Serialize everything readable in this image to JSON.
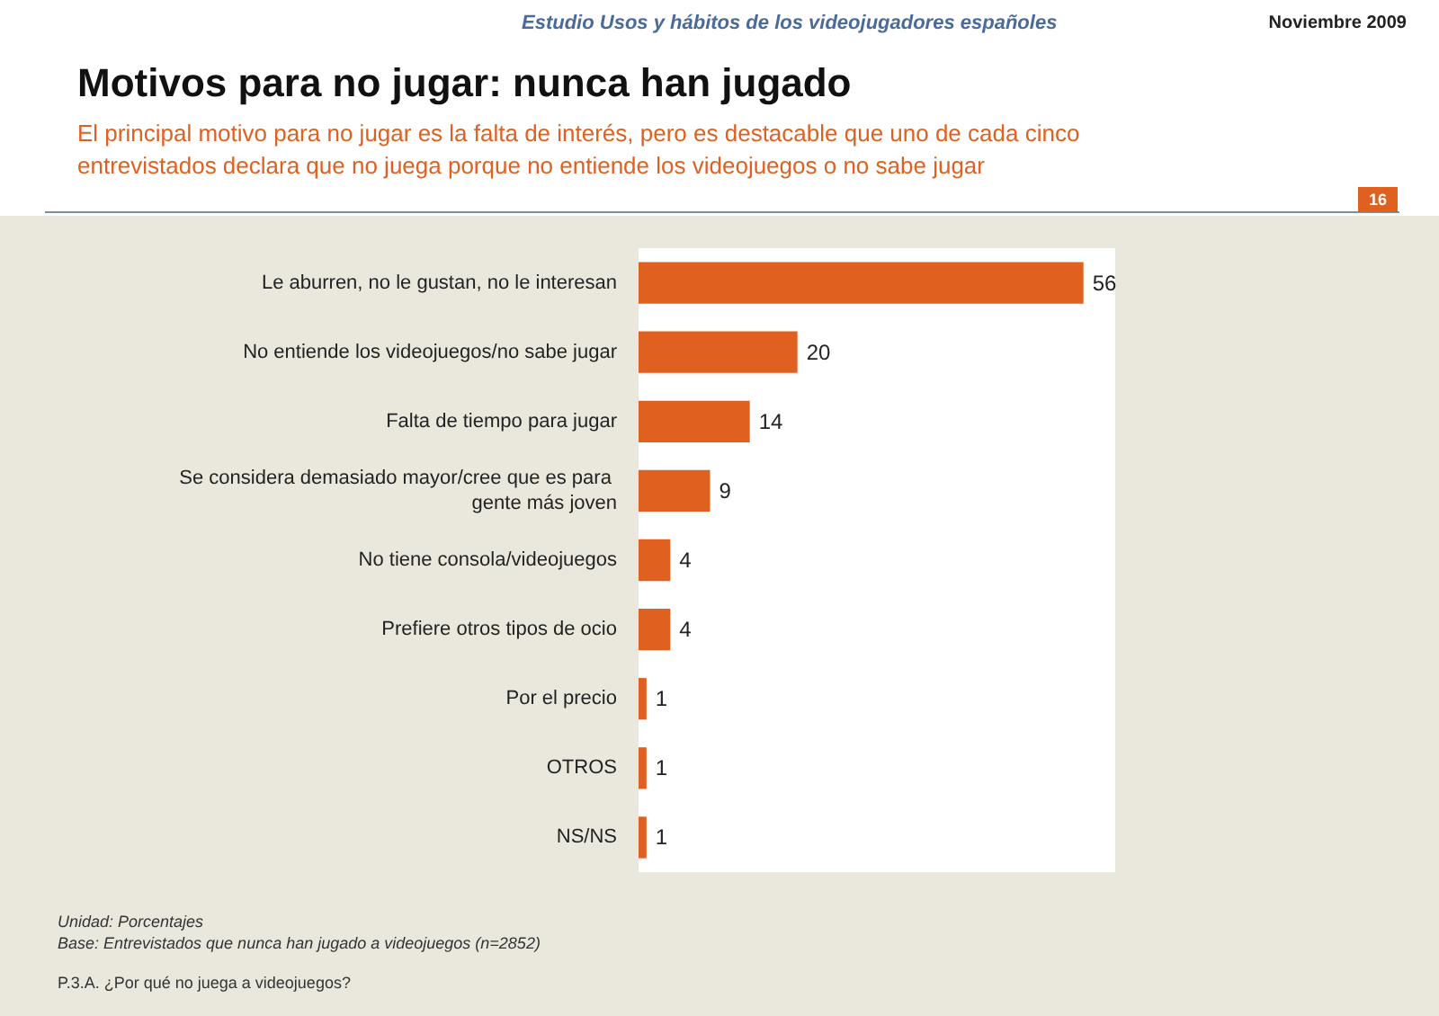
{
  "chart_data": {
    "type": "bar",
    "orientation": "horizontal",
    "title": "Motivos para no jugar: nunca han jugado",
    "subtitle": "El principal motivo para no jugar es la falta de interés, pero es destacable que uno de cada cinco entrevistados declara que no juega porque no entiende los videojuegos o no sabe jugar",
    "categories": [
      "Le aburren, no le gustan, no le interesan",
      "No entiende los videojuegos/no sabe jugar",
      "Falta de tiempo para jugar",
      "Se considera demasiado mayor/cree que es para gente más joven",
      "No tiene consola/videojuegos",
      "Prefiere otros tipos de ocio",
      "Por el precio",
      "OTROS",
      "NS/NS"
    ],
    "values": [
      56,
      20,
      14,
      9,
      4,
      4,
      1,
      1,
      1
    ],
    "color": "#e06020",
    "data_labels": true,
    "annotations": [
      "Estudio Usos y hábitos de los videojugadores españoles",
      "Noviembre 2009",
      "16",
      "Unidad: Porcentajes",
      "Base: Entrevistados que nunca han jugado a videojuegos (n=2852)",
      "P.3.A. ¿Por qué no juega a videojuegos?"
    ]
  }
}
